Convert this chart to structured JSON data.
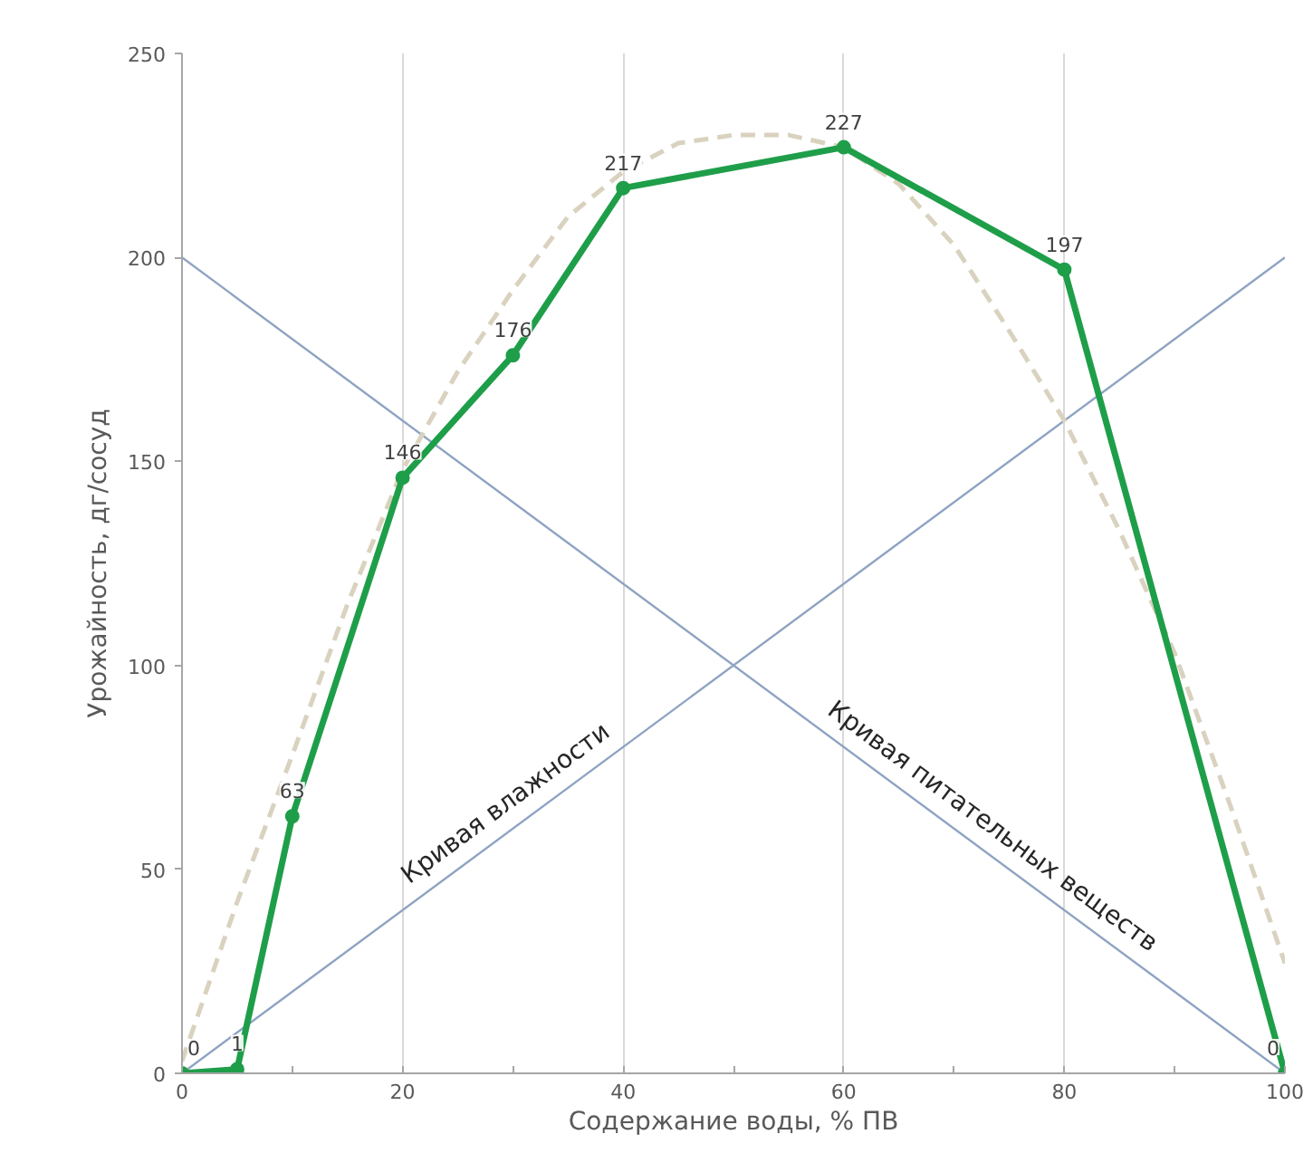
{
  "chart_data": {
    "type": "line",
    "xlabel": "Содержание воды, % ПВ",
    "ylabel": "Урожайность, дг/сосуд",
    "xlim": [
      0,
      100
    ],
    "ylim": [
      0,
      250
    ],
    "xticks": [
      0,
      {
        "value": 10,
        "label": null
      },
      20,
      {
        "value": 30,
        "label": null
      },
      40,
      {
        "value": 50,
        "label": null
      },
      60,
      {
        "value": 70,
        "label": null
      },
      80,
      {
        "value": 90,
        "label": null
      },
      100
    ],
    "yticks": [
      0,
      50,
      100,
      150,
      200,
      250
    ],
    "grid": "x",
    "series": [
      {
        "color": "#8fa3c2",
        "x": [
          0,
          100
        ],
        "values": [
          0,
          200
        ],
        "line_style": "solid",
        "marker": "none"
      },
      {
        "color": "#8fa3c2",
        "x": [
          0,
          100
        ],
        "values": [
          200,
          0
        ],
        "line_style": "solid",
        "marker": "none"
      },
      {
        "color": "#d9d2bf",
        "x": [
          0,
          5,
          10,
          15,
          20,
          25,
          30,
          35,
          40,
          45,
          50,
          55,
          60,
          65,
          70,
          75,
          80,
          85,
          90,
          95,
          100
        ],
        "values": [
          3,
          42,
          78,
          115,
          148,
          172,
          192,
          210,
          221,
          228,
          230,
          230,
          227,
          218,
          203,
          182,
          160,
          133,
          103,
          66,
          27
        ],
        "line_style": "dashed",
        "marker": "none"
      },
      {
        "color": "#1f9e4a",
        "x": [
          0,
          5,
          10,
          20,
          30,
          40,
          60,
          80,
          100
        ],
        "values": [
          0,
          1,
          63,
          146,
          176,
          217,
          227,
          197,
          0
        ],
        "line_style": "solid",
        "marker": "circle",
        "data_labels": true
      }
    ],
    "annotations": [
      {
        "text": "Кривая влажности",
        "x": 21,
        "y": 44
      },
      {
        "text": "Кривая питательных веществ",
        "x": 58,
        "y": 86
      }
    ]
  }
}
